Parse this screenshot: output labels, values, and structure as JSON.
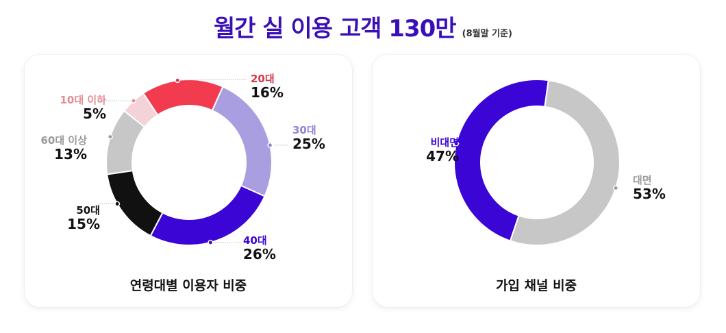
{
  "header": {
    "title": "월간 실 이용 고객 130만",
    "subtitle": "(8월말 기준)",
    "title_color": "#3a0fb8"
  },
  "chart_data": [
    {
      "type": "pie",
      "variant": "donut",
      "title": "연령대별 이용자 비중",
      "categories": [
        "20대",
        "30대",
        "40대",
        "50대",
        "60대 이상",
        "10대 이하"
      ],
      "values": [
        16,
        25,
        26,
        15,
        13,
        5
      ],
      "unit": "%",
      "colors": [
        "#f23b4e",
        "#a99fe0",
        "#3b05d6",
        "#111111",
        "#c7c7c7",
        "#f3d3d7"
      ],
      "label_colors": [
        "#d5384a",
        "#8e83d6",
        "#3b05d6",
        "#111111",
        "#9a9a9a",
        "#e38c95"
      ]
    },
    {
      "type": "pie",
      "variant": "donut",
      "title": "가입 채널 비중",
      "categories": [
        "비대면",
        "대면"
      ],
      "values": [
        47,
        53
      ],
      "unit": "%",
      "colors": [
        "#3b05d6",
        "#c7c7c7"
      ],
      "label_colors": [
        "#3b05d6",
        "#9a9a9a"
      ]
    }
  ],
  "age_chart": {
    "caption": "연령대별 이용자 비중",
    "labels": [
      {
        "name": "20대",
        "pct": "16%"
      },
      {
        "name": "30대",
        "pct": "25%"
      },
      {
        "name": "40대",
        "pct": "26%"
      },
      {
        "name": "50대",
        "pct": "15%"
      },
      {
        "name": "60대 이상",
        "pct": "13%"
      },
      {
        "name": "10대 이하",
        "pct": "5%"
      }
    ]
  },
  "channel_chart": {
    "caption": "가입 채널 비중",
    "labels": [
      {
        "name": "비대면",
        "pct": "47%"
      },
      {
        "name": "대면",
        "pct": "53%"
      }
    ]
  }
}
